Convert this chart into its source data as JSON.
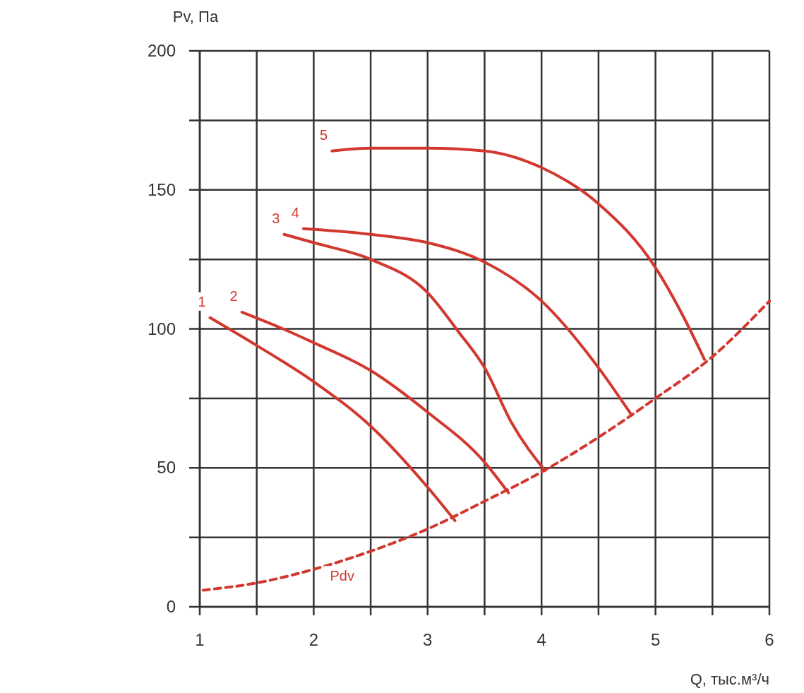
{
  "chart_data": {
    "type": "line",
    "xlabel": "Q, тыс.м³/ч",
    "ylabel": "Pv, Па",
    "xlim": [
      1,
      6
    ],
    "ylim": [
      0,
      200
    ],
    "xticks": [
      1,
      {
        "value": 1.5,
        "label": null
      },
      2,
      {
        "value": 2.5,
        "label": null
      },
      3,
      {
        "value": 3.5,
        "label": null
      },
      4,
      {
        "value": 4.5,
        "label": null
      },
      5,
      {
        "value": 5.5,
        "label": null
      },
      6
    ],
    "yticks": [
      0,
      {
        "value": 25,
        "label": null
      },
      50,
      {
        "value": 75,
        "label": null
      },
      100,
      {
        "value": 125,
        "label": null
      },
      150,
      {
        "value": 175,
        "label": null
      },
      200
    ],
    "grid": true,
    "marker": "none",
    "series": [
      {
        "name": "1",
        "color": "#d2382f",
        "x": [
          1.09,
          1.5,
          2,
          2.5,
          3,
          3.24
        ],
        "values": [
          104,
          94,
          81,
          65,
          43,
          31
        ]
      },
      {
        "name": "2",
        "color": "#d2382f",
        "x": [
          1.37,
          1.73,
          2,
          2.5,
          3,
          3.5,
          3.71
        ],
        "values": [
          106,
          100,
          95,
          85,
          70,
          52,
          41
        ]
      },
      {
        "name": "3",
        "color": "#d2382f",
        "x": [
          1.74,
          2,
          2.5,
          3,
          3.27,
          3.5,
          3.74,
          4.03
        ],
        "values": [
          134,
          131,
          125,
          113,
          99,
          86,
          66,
          49
        ]
      },
      {
        "name": "4",
        "color": "#d2382f",
        "x": [
          1.91,
          2.5,
          3,
          3.5,
          4,
          4.5,
          4.79
        ],
        "values": [
          136,
          134,
          131,
          124,
          110,
          86,
          69
        ]
      },
      {
        "name": "5",
        "color": "#d2382f",
        "x": [
          2.16,
          2.5,
          3,
          3.5,
          4,
          4.5,
          5,
          5.25,
          5.43
        ],
        "values": [
          164,
          165,
          165,
          164,
          158,
          145,
          122,
          104,
          89
        ]
      },
      {
        "name": "Pdv",
        "color": "#d2382f",
        "line_style": "dashed",
        "x": [
          1.03,
          1.5,
          2,
          2.5,
          3,
          3.5,
          4,
          4.5,
          5,
          5.5,
          6
        ],
        "values": [
          6,
          8.6,
          13.5,
          20,
          28,
          38,
          48.5,
          61,
          75,
          90,
          110
        ]
      }
    ]
  }
}
